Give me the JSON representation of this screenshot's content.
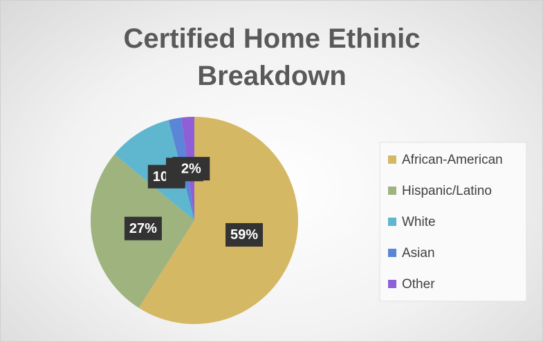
{
  "chart_data": {
    "type": "pie",
    "title": "Certified Home Ethinic Breakdown",
    "categories": [
      "African-American",
      "Hispanic/Latino",
      "White",
      "Asian",
      "Other"
    ],
    "values": [
      59,
      27,
      10,
      2,
      2
    ],
    "value_labels": [
      "59%",
      "27%",
      "10%",
      "2%",
      "2%"
    ],
    "colors": [
      "#d5b863",
      "#9fb37f",
      "#5fb6cf",
      "#5b85d6",
      "#8e5fd6"
    ],
    "legend": "right"
  }
}
